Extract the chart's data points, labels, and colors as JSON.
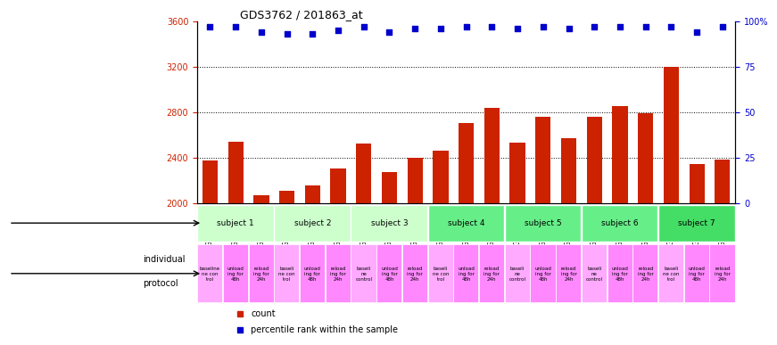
{
  "title": "GDS3762 / 201863_at",
  "samples": [
    "GSM537140",
    "GSM537139",
    "GSM537138",
    "GSM537137",
    "GSM537136",
    "GSM537135",
    "GSM537134",
    "GSM537133",
    "GSM537132",
    "GSM537131",
    "GSM537130",
    "GSM537129",
    "GSM537128",
    "GSM537127",
    "GSM537126",
    "GSM537125",
    "GSM537124",
    "GSM537123",
    "GSM537122",
    "GSM537121",
    "GSM537120"
  ],
  "counts": [
    2370,
    2540,
    2070,
    2110,
    2150,
    2300,
    2520,
    2270,
    2400,
    2460,
    2700,
    2840,
    2530,
    2760,
    2570,
    2760,
    2850,
    2790,
    3200,
    2340,
    2380
  ],
  "percentile_ranks": [
    97,
    97,
    94,
    93,
    93,
    95,
    97,
    94,
    96,
    96,
    97,
    97,
    96,
    97,
    96,
    97,
    97,
    97,
    97,
    94,
    97
  ],
  "ylim_left": [
    2000,
    3600
  ],
  "ylim_right": [
    0,
    100
  ],
  "yticks_left": [
    2000,
    2400,
    2800,
    3200,
    3600
  ],
  "yticks_right": [
    0,
    25,
    50,
    75,
    100
  ],
  "ytick_labels_right": [
    "0",
    "25",
    "50",
    "75",
    "100%"
  ],
  "bar_color": "#cc2200",
  "dot_color": "#0000cc",
  "grid_color": "#000000",
  "subjects": [
    {
      "label": "subject 1",
      "start": 0,
      "end": 3,
      "color": "#ccffcc"
    },
    {
      "label": "subject 2",
      "start": 3,
      "end": 6,
      "color": "#ccffcc"
    },
    {
      "label": "subject 3",
      "start": 6,
      "end": 9,
      "color": "#ccffcc"
    },
    {
      "label": "subject 4",
      "start": 9,
      "end": 12,
      "color": "#66ee88"
    },
    {
      "label": "subject 5",
      "start": 12,
      "end": 15,
      "color": "#66ee88"
    },
    {
      "label": "subject 6",
      "start": 15,
      "end": 18,
      "color": "#66ee88"
    },
    {
      "label": "subject 7",
      "start": 18,
      "end": 21,
      "color": "#44dd66"
    }
  ],
  "protocols": [
    {
      "label": "baseline\nne con\ntrol",
      "color": "#ffaaff"
    },
    {
      "label": "unload\ning for\n48h",
      "color": "#ff88ff"
    },
    {
      "label": "reload\ning for\n24h",
      "color": "#ff88ff"
    },
    {
      "label": "baseli\nne con\ntrol",
      "color": "#ffaaff"
    },
    {
      "label": "unload\ning for\n48h",
      "color": "#ff88ff"
    },
    {
      "label": "reload\ning for\n24h",
      "color": "#ff88ff"
    },
    {
      "label": "baseli\nne\ncontrol",
      "color": "#ffaaff"
    },
    {
      "label": "unload\ning for\n48h",
      "color": "#ff88ff"
    },
    {
      "label": "reload\ning for\n24h",
      "color": "#ff88ff"
    },
    {
      "label": "baseli\nne con\ntrol",
      "color": "#ffaaff"
    },
    {
      "label": "unload\ning for\n48h",
      "color": "#ff88ff"
    },
    {
      "label": "reload\ning for\n24h",
      "color": "#ff88ff"
    },
    {
      "label": "baseli\nne\ncontrol",
      "color": "#ffaaff"
    },
    {
      "label": "unload\ning for\n48h",
      "color": "#ff88ff"
    },
    {
      "label": "reload\ning for\n24h",
      "color": "#ff88ff"
    },
    {
      "label": "baseli\nne\ncontrol",
      "color": "#ffaaff"
    },
    {
      "label": "unload\ning for\n48h",
      "color": "#ff88ff"
    },
    {
      "label": "reload\ning for\n24h",
      "color": "#ff88ff"
    },
    {
      "label": "baseli\nne con\ntrol",
      "color": "#ffaaff"
    },
    {
      "label": "unload\ning for\n48h",
      "color": "#ff88ff"
    },
    {
      "label": "reload\ning for\n24h",
      "color": "#ff88ff"
    }
  ],
  "bg_color": "#ffffff",
  "label_individual": "individual",
  "label_protocol": "protocol",
  "legend_count": "count",
  "legend_percentile": "percentile rank within the sample"
}
